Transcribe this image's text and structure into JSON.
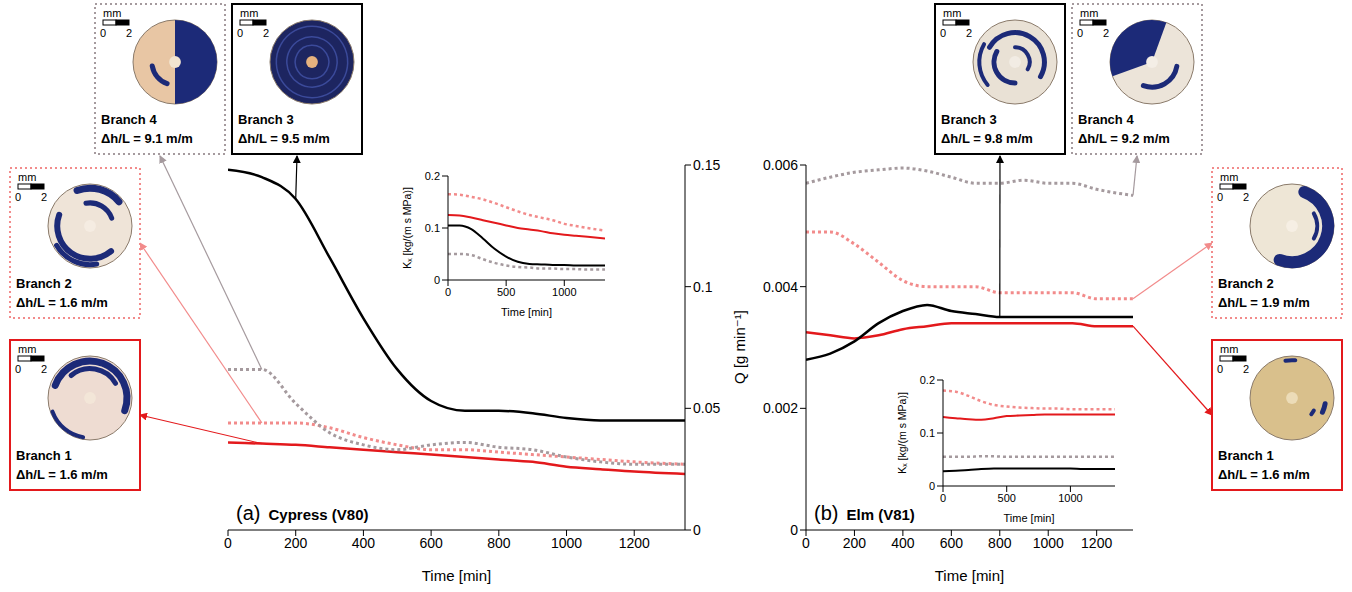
{
  "chart_data": [
    {
      "type": "line",
      "panel": "(a)",
      "title": "Cypress (V80)",
      "x_label": "Time [min]",
      "y_label": "Q [g min⁻¹]",
      "x": [
        0,
        100,
        200,
        300,
        400,
        500,
        600,
        700,
        800,
        900,
        1000,
        1100,
        1200,
        1350
      ],
      "xlim": [
        0,
        1350
      ],
      "xticks": [
        0,
        200,
        400,
        600,
        800,
        1000,
        1200
      ],
      "ylim": [
        0,
        0.15
      ],
      "yticks": [
        0,
        0.05,
        0.1,
        0.15
      ],
      "scale_bar": {
        "unit": "mm",
        "ticks": [
          0,
          2
        ]
      },
      "series": [
        {
          "name": "Branch 1",
          "annotation": "Δh/L = 1.6 m/m",
          "color": "#e3191c",
          "line_style": "solid",
          "values": [
            0.036,
            0.0355,
            0.035,
            0.034,
            0.033,
            0.032,
            0.031,
            0.03,
            0.029,
            0.028,
            0.026,
            0.025,
            0.024,
            0.023
          ]
        },
        {
          "name": "Branch 2",
          "annotation": "Δh/L = 1.6 m/m",
          "color": "#f28b8b",
          "line_style": "dotted",
          "values": [
            0.044,
            0.044,
            0.044,
            0.042,
            0.038,
            0.035,
            0.033,
            0.033,
            0.032,
            0.031,
            0.03,
            0.029,
            0.028,
            0.027
          ]
        },
        {
          "name": "Branch 3",
          "annotation": "Δh/L = 9.5 m/m",
          "color": "#000000",
          "line_style": "solid",
          "values": [
            0.148,
            0.145,
            0.136,
            0.112,
            0.087,
            0.066,
            0.053,
            0.049,
            0.049,
            0.048,
            0.046,
            0.045,
            0.045,
            0.045
          ]
        },
        {
          "name": "Branch 4",
          "annotation": "Δh/L = 9.1 m/m",
          "color": "#a59a9e",
          "line_style": "dotted",
          "values": [
            0.066,
            0.066,
            0.052,
            0.04,
            0.035,
            0.033,
            0.035,
            0.036,
            0.034,
            0.033,
            0.03,
            0.028,
            0.027,
            0.027
          ]
        }
      ],
      "inset": {
        "type": "line",
        "x_label": "Time [min]",
        "y_label": "Kₓ [kg/(m s MPa)]",
        "xlim": [
          0,
          1350
        ],
        "xticks": [
          0,
          500,
          1000
        ],
        "ylim": [
          0,
          0.2
        ],
        "yticks": [
          0,
          0.1,
          0.2
        ],
        "series": [
          {
            "color": "#e3191c",
            "line_style": "solid",
            "values": [
              0.125,
              0.124,
              0.12,
              0.115,
              0.11,
              0.105,
              0.1,
              0.097,
              0.094,
              0.09,
              0.087,
              0.085,
              0.083,
              0.08
            ]
          },
          {
            "color": "#f28b8b",
            "line_style": "dotted",
            "values": [
              0.165,
              0.164,
              0.16,
              0.155,
              0.148,
              0.14,
              0.132,
              0.125,
              0.12,
              0.115,
              0.108,
              0.104,
              0.1,
              0.095
            ]
          },
          {
            "color": "#000000",
            "line_style": "solid",
            "values": [
              0.105,
              0.105,
              0.098,
              0.08,
              0.06,
              0.045,
              0.035,
              0.031,
              0.03,
              0.029,
              0.029,
              0.028,
              0.028,
              0.028
            ]
          },
          {
            "color": "#a59a9e",
            "line_style": "dotted",
            "values": [
              0.05,
              0.05,
              0.048,
              0.04,
              0.033,
              0.028,
              0.025,
              0.024,
              0.022,
              0.022,
              0.021,
              0.021,
              0.02,
              0.02
            ]
          }
        ]
      }
    },
    {
      "type": "line",
      "panel": "(b)",
      "title": "Elm (V81)",
      "x_label": "Time [min]",
      "x": [
        0,
        100,
        200,
        300,
        400,
        500,
        600,
        700,
        800,
        900,
        1000,
        1100,
        1200,
        1350
      ],
      "xlim": [
        0,
        1350
      ],
      "xticks": [
        0,
        200,
        400,
        600,
        800,
        1000,
        1200
      ],
      "ylim": [
        0,
        0.006
      ],
      "yticks": [
        0,
        0.002,
        0.004,
        0.006
      ],
      "scale_bar": {
        "unit": "mm",
        "ticks": [
          0,
          2
        ]
      },
      "series": [
        {
          "name": "Branch 1",
          "annotation": "Δh/L = 1.6 m/m",
          "color": "#e3191c",
          "line_style": "solid",
          "values": [
            0.00325,
            0.0032,
            0.00315,
            0.0032,
            0.0033,
            0.00335,
            0.0034,
            0.0034,
            0.0034,
            0.0034,
            0.0034,
            0.0034,
            0.00335,
            0.00335
          ]
        },
        {
          "name": "Branch 2",
          "annotation": "Δh/L = 1.9 m/m",
          "color": "#f28b8b",
          "line_style": "dotted",
          "values": [
            0.0049,
            0.0049,
            0.0047,
            0.0044,
            0.0041,
            0.004,
            0.004,
            0.004,
            0.0039,
            0.0039,
            0.0039,
            0.0039,
            0.0038,
            0.0038
          ]
        },
        {
          "name": "Branch 3",
          "annotation": "Δh/L = 9.8 m/m",
          "color": "#000000",
          "line_style": "solid",
          "values": [
            0.0028,
            0.0029,
            0.0031,
            0.0034,
            0.0036,
            0.0037,
            0.0036,
            0.00355,
            0.0035,
            0.0035,
            0.0035,
            0.0035,
            0.0035,
            0.0035
          ]
        },
        {
          "name": "Branch 4",
          "annotation": "Δh/L = 9.2 m/m",
          "color": "#a59a9e",
          "line_style": "dotted",
          "values": [
            0.0057,
            0.0058,
            0.00588,
            0.00592,
            0.00595,
            0.0059,
            0.0058,
            0.0057,
            0.0057,
            0.00575,
            0.0057,
            0.0057,
            0.0056,
            0.0055
          ]
        }
      ],
      "inset": {
        "type": "line",
        "x_label": "Time [min]",
        "y_label": "Kₓ [kg/(m s MPa)]",
        "xlim": [
          0,
          1350
        ],
        "xticks": [
          0,
          500,
          1000
        ],
        "ylim": [
          0,
          0.2
        ],
        "yticks": [
          0,
          0.1,
          0.2
        ],
        "series": [
          {
            "color": "#e3191c",
            "line_style": "solid",
            "values": [
              0.13,
              0.128,
              0.126,
              0.125,
              0.128,
              0.132,
              0.133,
              0.134,
              0.135,
              0.135,
              0.135,
              0.135,
              0.135,
              0.135
            ]
          },
          {
            "color": "#f28b8b",
            "line_style": "dotted",
            "values": [
              0.18,
              0.178,
              0.17,
              0.16,
              0.153,
              0.15,
              0.148,
              0.147,
              0.146,
              0.146,
              0.145,
              0.145,
              0.145,
              0.145
            ]
          },
          {
            "color": "#000000",
            "line_style": "solid",
            "values": [
              0.028,
              0.029,
              0.03,
              0.032,
              0.033,
              0.033,
              0.033,
              0.033,
              0.033,
              0.033,
              0.033,
              0.032,
              0.032,
              0.032
            ]
          },
          {
            "color": "#a59a9e",
            "line_style": "dotted",
            "values": [
              0.055,
              0.055,
              0.055,
              0.056,
              0.056,
              0.055,
              0.055,
              0.055,
              0.055,
              0.055,
              0.055,
              0.055,
              0.055,
              0.055
            ]
          }
        ]
      }
    }
  ]
}
